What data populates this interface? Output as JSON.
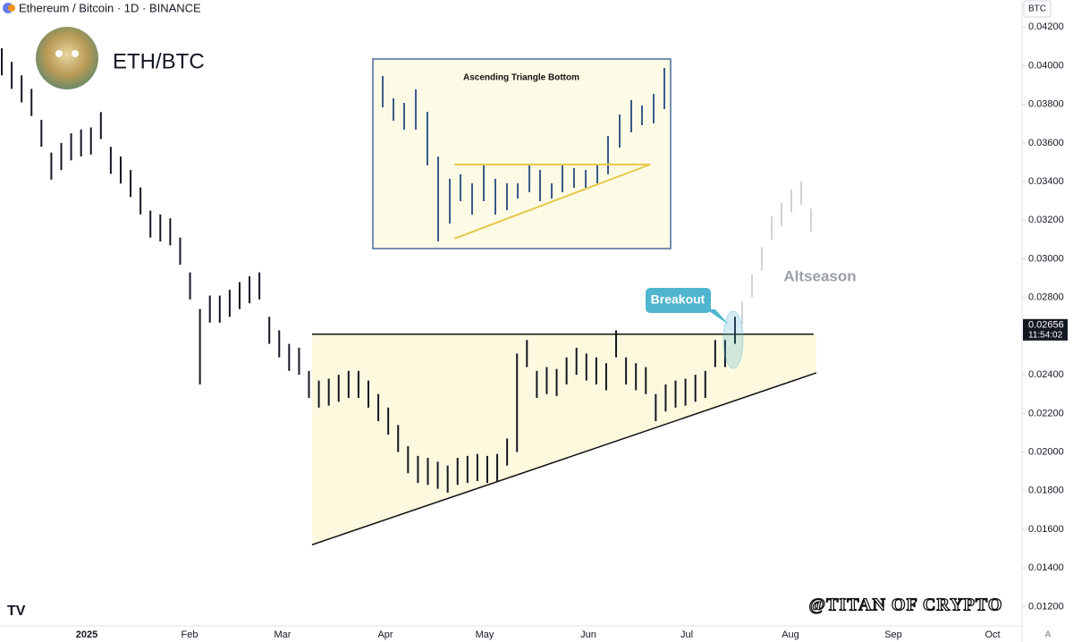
{
  "chart_data": {
    "type": "ohlc",
    "header": "Ethereum / Bitcoin · 1D · BINANCE",
    "symbol": "ETH/BTC",
    "currency": "BTC",
    "scale_mode": "A",
    "x_labels": [
      "2025",
      "Feb",
      "Mar",
      "Apr",
      "May",
      "Jun",
      "Jul",
      "Aug",
      "Sep",
      "Oct"
    ],
    "ylim": [
      0.011,
      0.0434
    ],
    "yticks": [
      {
        "value": 0.012,
        "label": "0.01200"
      },
      {
        "value": 0.014,
        "label": "0.01400"
      },
      {
        "value": 0.016,
        "label": "0.01600"
      },
      {
        "value": 0.018,
        "label": "0.01800"
      },
      {
        "value": 0.02,
        "label": "0.02000"
      },
      {
        "value": 0.022,
        "label": "0.02200"
      },
      {
        "value": 0.024,
        "label": "0.02400"
      },
      {
        "value": 0.026,
        "label": "0.02600"
      },
      {
        "value": 0.028,
        "label": "0.02800"
      },
      {
        "value": 0.03,
        "label": "0.03000"
      },
      {
        "value": 0.032,
        "label": "0.03200"
      },
      {
        "value": 0.034,
        "label": "0.03400"
      },
      {
        "value": 0.036,
        "label": "0.03600"
      },
      {
        "value": 0.038,
        "label": "0.03800"
      },
      {
        "value": 0.04,
        "label": "0.04000"
      },
      {
        "value": 0.042,
        "label": "0.04200"
      }
    ],
    "high": [
      0.0409,
      0.0402,
      0.0395,
      0.0388,
      0.0372,
      0.0355,
      0.036,
      0.0365,
      0.0367,
      0.0368,
      0.0376,
      0.0358,
      0.0353,
      0.0346,
      0.0337,
      0.0325,
      0.0323,
      0.0321,
      0.0311,
      0.0293,
      0.0274,
      0.0281,
      0.0281,
      0.0284,
      0.0288,
      0.0291,
      0.0293,
      0.027,
      0.0263,
      0.0256,
      0.0254,
      0.0242,
      0.0237,
      0.0238,
      0.024,
      0.0242,
      0.0242,
      0.0237,
      0.023,
      0.0223,
      0.0214,
      0.0203,
      0.0198,
      0.0197,
      0.0195,
      0.0193,
      0.0197,
      0.0198,
      0.0199,
      0.0198,
      0.0199,
      0.0207,
      0.0251,
      0.0258,
      0.0242,
      0.0244,
      0.0243,
      0.0249,
      0.0254,
      0.0251,
      0.0249,
      0.0246,
      0.0263,
      0.0249,
      0.0246,
      0.0244,
      0.023,
      0.0235,
      0.0237,
      0.0238,
      0.024,
      0.0242,
      0.0258,
      0.0258,
      0.027
    ],
    "low": [
      0.0395,
      0.0388,
      0.0381,
      0.0374,
      0.0358,
      0.0341,
      0.0346,
      0.0351,
      0.0353,
      0.0354,
      0.0362,
      0.0344,
      0.0339,
      0.0332,
      0.0323,
      0.0311,
      0.0309,
      0.0307,
      0.0297,
      0.0279,
      0.0235,
      0.0267,
      0.0267,
      0.027,
      0.0274,
      0.0277,
      0.0279,
      0.0256,
      0.0249,
      0.0242,
      0.024,
      0.0228,
      0.0223,
      0.0224,
      0.0226,
      0.0228,
      0.0228,
      0.0223,
      0.0216,
      0.0209,
      0.02,
      0.0189,
      0.0184,
      0.0183,
      0.0181,
      0.0179,
      0.0183,
      0.0184,
      0.0185,
      0.0184,
      0.0185,
      0.0193,
      0.02,
      0.0244,
      0.0228,
      0.023,
      0.0229,
      0.0235,
      0.024,
      0.0237,
      0.0235,
      0.0232,
      0.0249,
      0.0235,
      0.0232,
      0.023,
      0.0216,
      0.0221,
      0.0223,
      0.0224,
      0.0226,
      0.0228,
      0.0244,
      0.0244,
      0.0256
    ],
    "projection_high": [
      0.0278,
      0.0292,
      0.0306,
      0.0322,
      0.0329,
      0.0336,
      0.034,
      0.0326
    ],
    "projection_low": [
      0.0266,
      0.028,
      0.0294,
      0.031,
      0.0317,
      0.0324,
      0.0328,
      0.0314
    ],
    "resistance": 0.0261,
    "support": [
      0.0152,
      0.0241
    ],
    "last_price": 0.02656,
    "countdown": "11:54:02",
    "annotations": {
      "breakout": "Breakout",
      "altseason": "Altseason",
      "watermark": "@TITAN OF CRYPTO",
      "inset_title": "Ascending Triangle Bottom"
    },
    "color": "#131722"
  }
}
